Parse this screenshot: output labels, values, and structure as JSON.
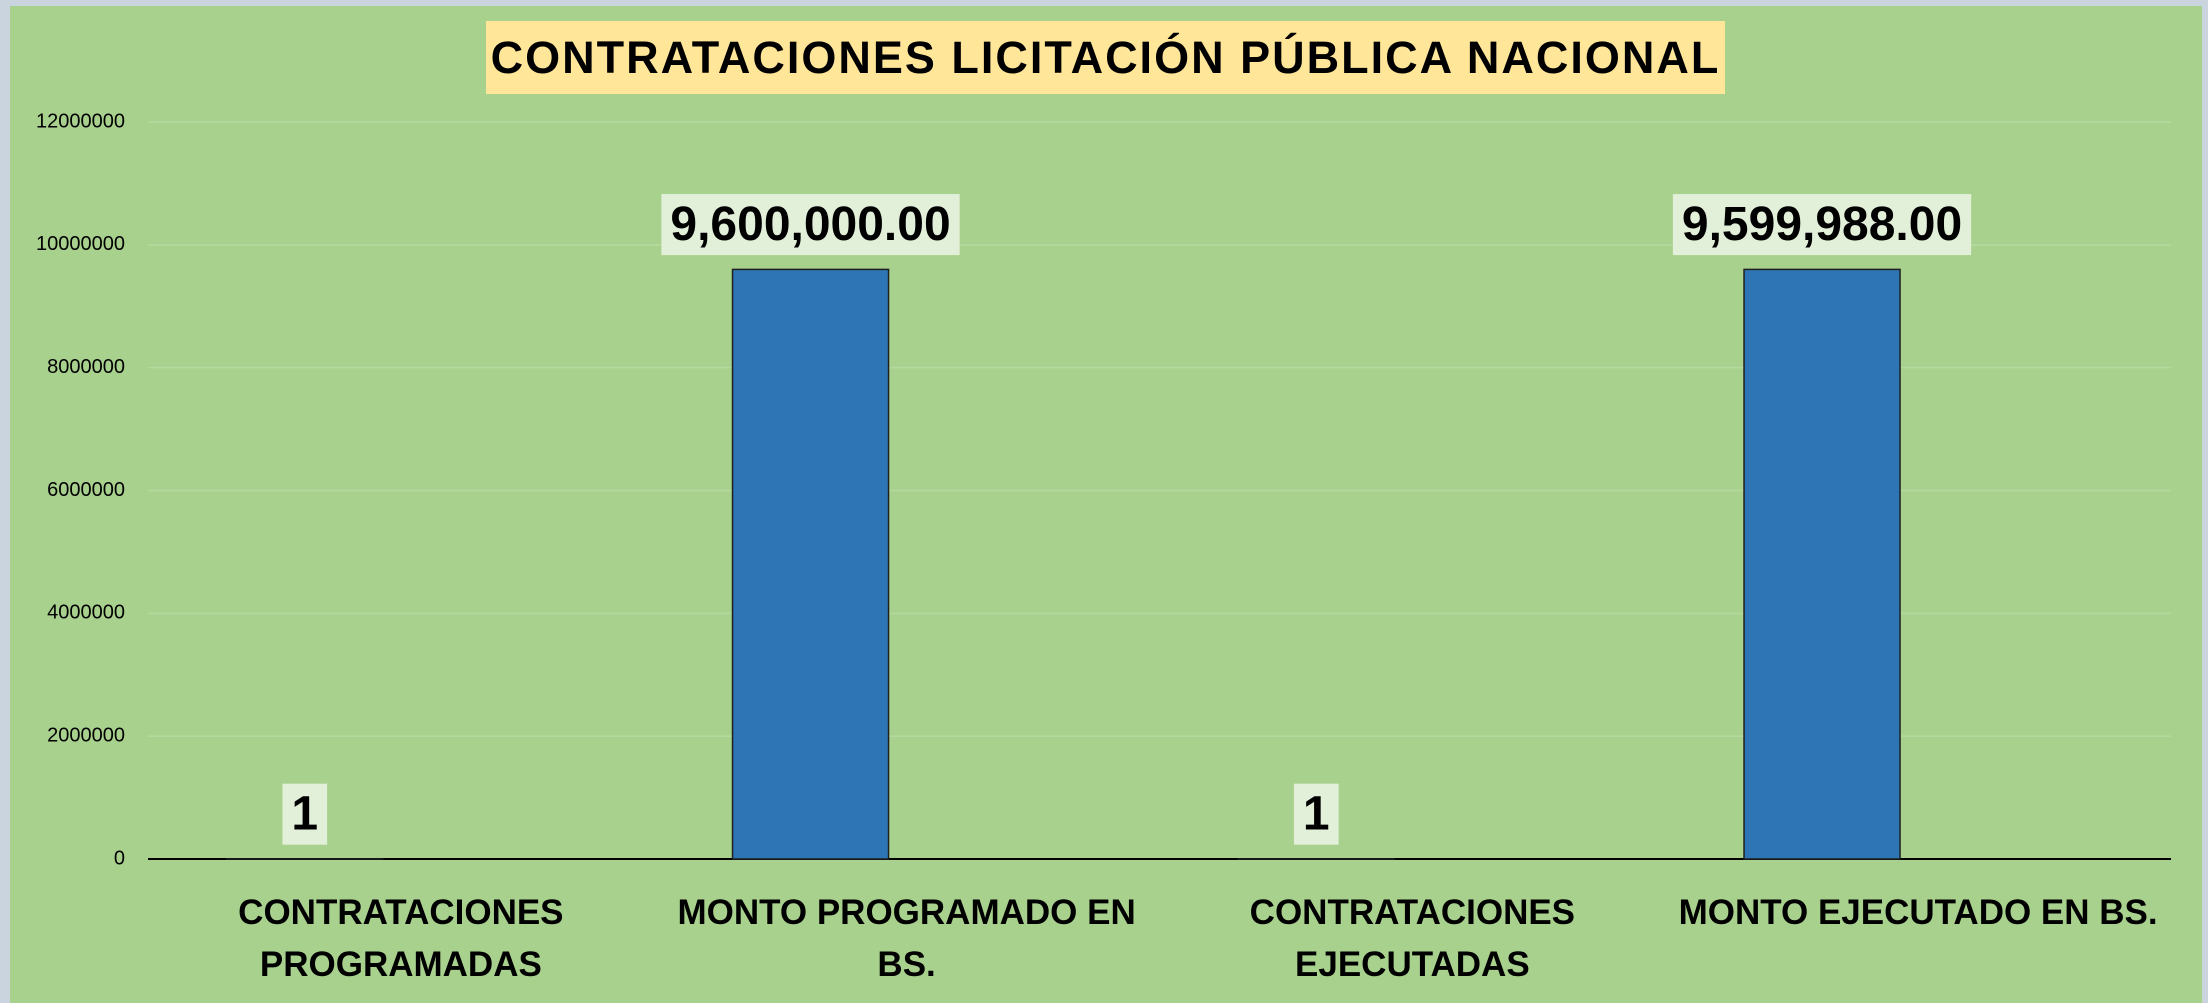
{
  "chart_data": {
    "type": "bar",
    "title": "CONTRATACIONES LICITACIÓN PÚBLICA NACIONAL",
    "categories": [
      "CONTRATACIONES PROGRAMADAS",
      "MONTO PROGRAMADO EN BS.",
      "CONTRATACIONES EJECUTADAS",
      "MONTO EJECUTADO EN BS."
    ],
    "values": [
      1,
      9600000,
      1,
      9599988
    ],
    "value_labels": [
      "1",
      "9,600,000.00",
      "1",
      "9,599,988.00"
    ],
    "color": "#2e75b6",
    "ylim": [
      0,
      12000000
    ],
    "yticks": [
      0,
      2000000,
      4000000,
      6000000,
      8000000,
      10000000,
      12000000
    ],
    "grid": true
  }
}
